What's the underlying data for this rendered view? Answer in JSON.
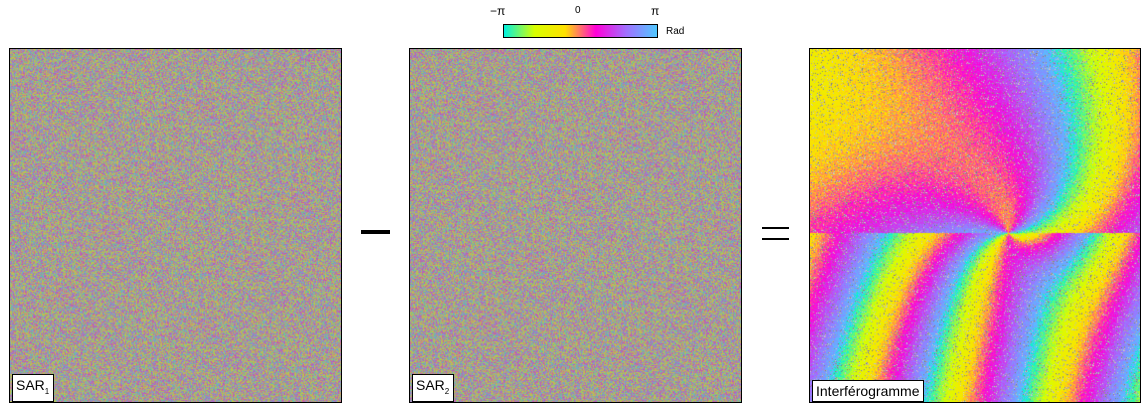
{
  "colorbar": {
    "ticks": [
      "−π",
      "0",
      "π"
    ],
    "unit": "Rad",
    "colors": [
      "#00f0e0",
      "#d8ff00",
      "#ffe000",
      "#ff00d8",
      "#a070ff",
      "#50c8ff"
    ]
  },
  "panels": [
    {
      "label": "SAR",
      "subscript": "1",
      "kind": "noise"
    },
    {
      "label": "SAR",
      "subscript": "2",
      "kind": "noise"
    },
    {
      "label": "Interférogramme",
      "subscript": "",
      "kind": "fringes"
    }
  ],
  "operators": {
    "minus": "−",
    "equals": "="
  }
}
